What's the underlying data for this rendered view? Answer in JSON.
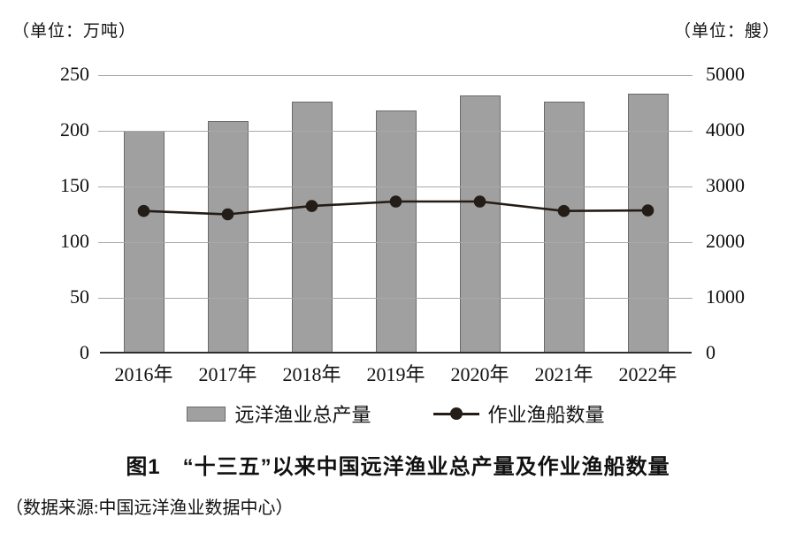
{
  "units": {
    "left": "（单位：万吨）",
    "right": "（单位：艘）"
  },
  "chart_data": {
    "type": "bar+line",
    "title": "图1　“十三五”以来中国远洋渔业总产量及作业渔船数量",
    "categories": [
      "2016年",
      "2017年",
      "2018年",
      "2019年",
      "2020年",
      "2021年",
      "2022年"
    ],
    "series": [
      {
        "name": "远洋渔业总产量",
        "type": "bar",
        "axis": "left",
        "unit": "万吨",
        "values": [
          200,
          209,
          226,
          218,
          232,
          226,
          233
        ]
      },
      {
        "name": "作业渔船数量",
        "type": "line",
        "axis": "right",
        "unit": "艘",
        "values": [
          2560,
          2500,
          2650,
          2730,
          2730,
          2560,
          2570
        ]
      }
    ],
    "left_axis": {
      "label": "（单位：万吨）",
      "ticks": [
        250,
        200,
        150,
        100,
        50,
        0
      ],
      "min": 0,
      "max": 250
    },
    "right_axis": {
      "label": "（单位：艘）",
      "ticks": [
        5000,
        4000,
        3000,
        2000,
        1000,
        0
      ],
      "min": 0,
      "max": 5000
    },
    "grid": true,
    "legend_position": "bottom"
  },
  "legend": [
    {
      "label": "远洋渔业总产量",
      "marker": "bar-swatch"
    },
    {
      "label": "作业渔船数量",
      "marker": "line-dot"
    }
  ],
  "title": "图1　“十三五”以来中国远洋渔业总产量及作业渔船数量",
  "source": "（数据来源:中国远洋渔业数据中心）",
  "colors": {
    "bar_fill": "#a0a0a1",
    "bar_border": "#6a6a6a",
    "gridline": "#a9a9a9",
    "baseline": "#2e2e2e",
    "line": "#241c16",
    "dot": "#241c16",
    "text": "#111111"
  }
}
